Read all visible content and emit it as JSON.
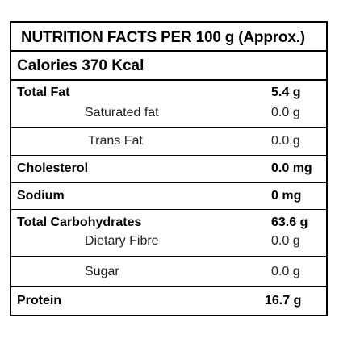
{
  "title": "NUTRITION FACTS PER 100 g (Approx.)",
  "calories": "Calories 370 Kcal",
  "rows": [
    {
      "name": "Total Fat",
      "value": "5.4 g"
    },
    {
      "name": "Saturated fat",
      "value": "0.0 g"
    },
    {
      "name": "Trans Fat",
      "value": "0.0 g"
    },
    {
      "name": "Cholesterol",
      "value": "0.0 mg"
    },
    {
      "name": "Sodium",
      "value": "0 mg"
    },
    {
      "name": "Total Carbohydrates",
      "value": "63.6 g"
    },
    {
      "name": "Dietary Fibre",
      "value": "0.0 g"
    },
    {
      "name": "Sugar",
      "value": "0.0 g"
    },
    {
      "name": "Protein",
      "value": "16.7 g"
    }
  ]
}
